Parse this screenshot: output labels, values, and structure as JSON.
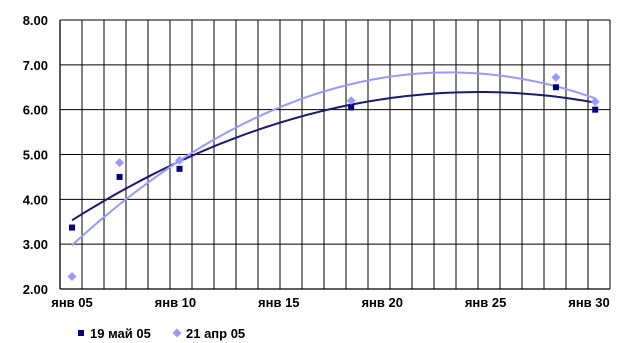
{
  "chart_data": {
    "type": "scatter",
    "title": "",
    "xlabel": "",
    "ylabel": "",
    "x_ticks": [
      "янв 05",
      "янв 10",
      "янв 15",
      "янв 20",
      "янв 25",
      "янв 30"
    ],
    "x_tick_values": [
      5,
      10,
      15,
      20,
      25,
      30
    ],
    "xlim": [
      5,
      30.5
    ],
    "ylim": [
      2.0,
      8.0
    ],
    "y_ticks": [
      "2.00",
      "3.00",
      "4.00",
      "5.00",
      "6.00",
      "7.00",
      "8.00"
    ],
    "y_tick_values": [
      2,
      3,
      4,
      5,
      6,
      7,
      8
    ],
    "grid": true,
    "legend_position": "bottom-left",
    "series": [
      {
        "name": "19 май 05",
        "color": "#000080",
        "marker": "square",
        "x": [
          5.0,
          7.3,
          10.2,
          18.5,
          28.4,
          30.3
        ],
        "y": [
          3.37,
          4.5,
          4.68,
          6.05,
          6.5,
          6.0
        ],
        "trend": "polynomial-2",
        "trend_color": "#1a1a70"
      },
      {
        "name": "21 апр 05",
        "color": "#9999ff",
        "marker": "diamond",
        "x": [
          5.0,
          7.3,
          10.2,
          18.5,
          28.4,
          30.3
        ],
        "y": [
          2.28,
          4.82,
          4.87,
          6.2,
          6.72,
          6.18
        ],
        "trend": "polynomial-2",
        "trend_color": "#9999ff"
      }
    ]
  }
}
